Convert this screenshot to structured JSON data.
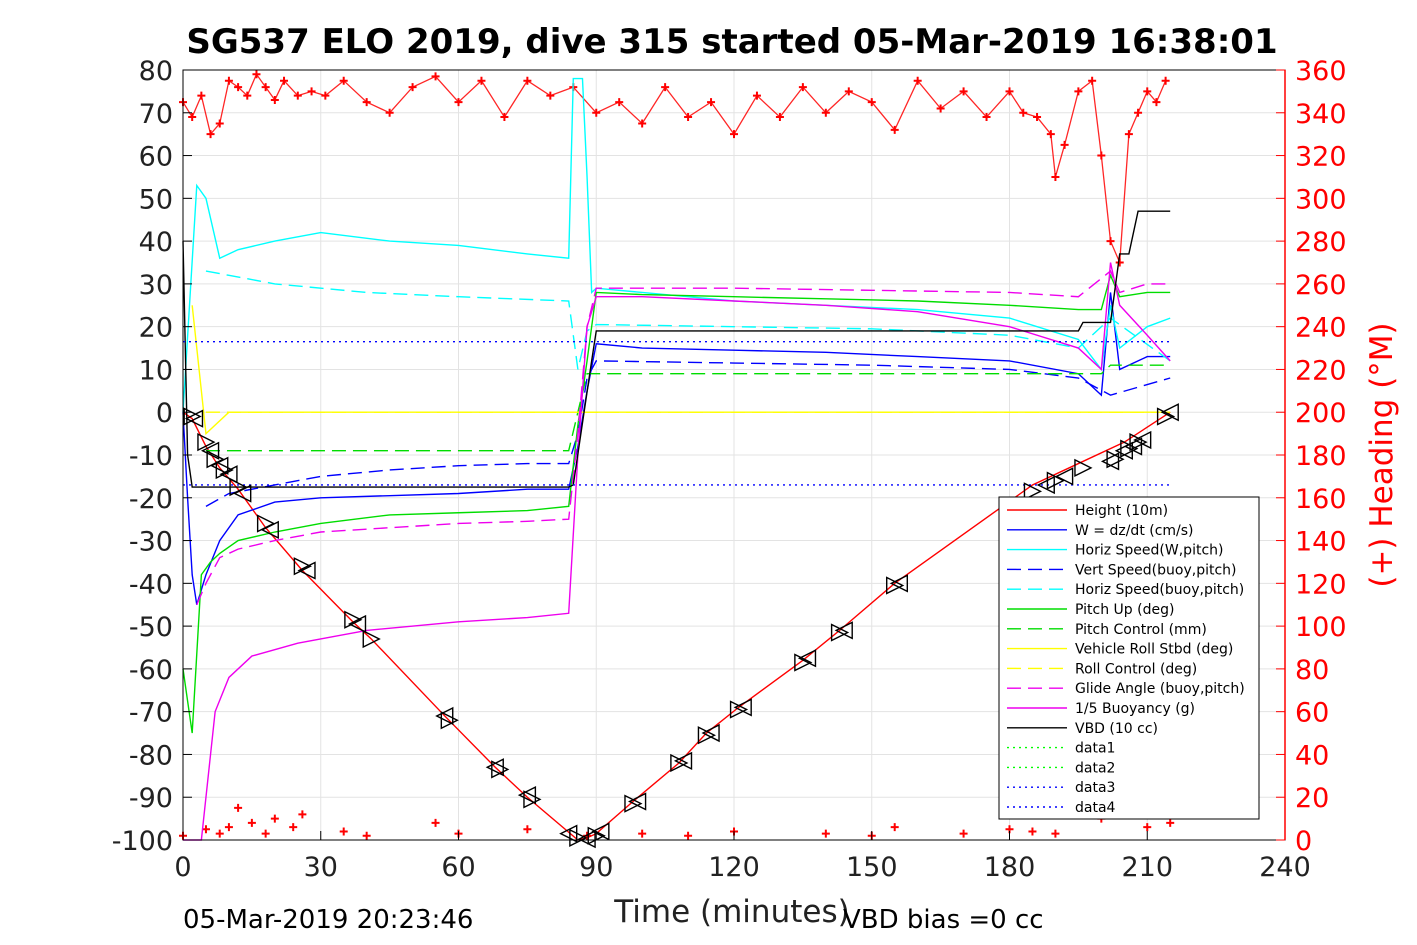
{
  "chart_data": {
    "type": "line",
    "title": "SG537 ELO 2019, dive 315 started 05-Mar-2019 16:38:01",
    "xlabel": "Time (minutes)",
    "ylabel": "",
    "y2label": "(+) Heading (°M)",
    "xlim": [
      0,
      240
    ],
    "ylim": [
      -100,
      80
    ],
    "y2lim": [
      0,
      360
    ],
    "xticks": [
      "0",
      "30",
      "60",
      "90",
      "120",
      "150",
      "180",
      "210",
      "240"
    ],
    "yticks": [
      "80",
      "70",
      "60",
      "50",
      "40",
      "30",
      "20",
      "10",
      "0",
      "-10",
      "-20",
      "-30",
      "-40",
      "-50",
      "-60",
      "-70",
      "-80",
      "-90",
      "-100"
    ],
    "y2ticks": [
      "360",
      "340",
      "320",
      "300",
      "280",
      "260",
      "240",
      "220",
      "200",
      "180",
      "160",
      "140",
      "120",
      "100",
      "80",
      "60",
      "40",
      "20",
      "0"
    ],
    "grid": true,
    "legend_position": "bottom-right",
    "series": [
      {
        "name": "Height (10m)",
        "color": "#ff0000",
        "style": "solid",
        "x": [
          0,
          2,
          5,
          8,
          12,
          18,
          26,
          37,
          41,
          57,
          68,
          75,
          86,
          88,
          90,
          98,
          108,
          114,
          121,
          135,
          143,
          155,
          185,
          195,
          205,
          215
        ],
        "y": [
          0,
          -1.5,
          -8,
          -13,
          -18,
          -27,
          -37,
          -49,
          -53,
          -71,
          -83,
          -90,
          -100,
          -99.5,
          -98.5,
          -91,
          -82,
          -75,
          -69,
          -58,
          -51,
          -40,
          -17,
          -12,
          -7,
          0
        ]
      },
      {
        "name": "W = dz/dt (cm/s)",
        "color": "#0000ff",
        "style": "solid",
        "x": [
          0,
          1,
          2,
          3,
          5,
          8,
          12,
          20,
          30,
          45,
          60,
          75,
          84,
          86,
          88,
          90,
          100,
          120,
          140,
          160,
          180,
          195,
          200,
          202,
          204,
          210,
          215
        ],
        "y": [
          0,
          -20,
          -38,
          -45,
          -38,
          -30,
          -24,
          -21,
          -20,
          -19.5,
          -19,
          -18,
          -18,
          -8,
          5,
          16,
          15,
          14.5,
          14,
          13,
          12,
          9,
          4,
          28,
          10,
          13,
          13
        ]
      },
      {
        "name": "Horiz Speed(W,pitch)",
        "color": "#00ffff",
        "style": "solid",
        "x": [
          0,
          3,
          5,
          8,
          12,
          20,
          30,
          45,
          60,
          75,
          84,
          85,
          87,
          88,
          89,
          90,
          100,
          120,
          140,
          160,
          180,
          195,
          200,
          202,
          204,
          210,
          215
        ],
        "y": [
          0,
          53,
          50,
          36,
          38,
          40,
          42,
          40,
          39,
          37,
          36,
          78,
          78,
          55,
          28,
          29,
          28,
          26,
          25,
          24,
          22,
          17,
          10,
          25,
          15,
          20,
          22
        ]
      },
      {
        "name": "Vert Speed(buoy,pitch)",
        "color": "#0000ff",
        "style": "dashed",
        "x": [
          5,
          10,
          20,
          30,
          45,
          60,
          75,
          84,
          86,
          88,
          90,
          120,
          150,
          180,
          195,
          202,
          215
        ],
        "y": [
          -22,
          -19,
          -17,
          -15,
          -13.5,
          -12.5,
          -12,
          -12,
          -5,
          8,
          12,
          11.5,
          11,
          10,
          8,
          4,
          8
        ]
      },
      {
        "name": "Horiz Speed(buoy,pitch)",
        "color": "#00ffff",
        "style": "dashed",
        "x": [
          5,
          10,
          20,
          40,
          60,
          84,
          86,
          88,
          90,
          120,
          150,
          180,
          195,
          202,
          215
        ],
        "y": [
          33,
          32,
          30,
          28,
          27,
          26,
          10,
          19,
          20.5,
          20,
          19.5,
          18,
          15,
          22,
          12
        ]
      },
      {
        "name": "Pitch Up (deg)",
        "color": "#00dd00",
        "style": "solid",
        "x": [
          0,
          2,
          4,
          6,
          8,
          12,
          20,
          30,
          45,
          60,
          75,
          84,
          86,
          88,
          90,
          100,
          120,
          140,
          160,
          180,
          195,
          200,
          202,
          204,
          210,
          215
        ],
        "y": [
          -60,
          -75,
          -38,
          -35,
          -33,
          -30,
          -28,
          -26,
          -24,
          -23.5,
          -23,
          -22,
          -3,
          12,
          28,
          27.5,
          27,
          26.5,
          26,
          25,
          24,
          24,
          32,
          27,
          28,
          28
        ]
      },
      {
        "name": "Pitch Control (mm)",
        "color": "#00dd00",
        "style": "dashed",
        "x": [
          5,
          84,
          86,
          88,
          200,
          202,
          215
        ],
        "y": [
          -9,
          -9,
          0,
          9,
          9,
          11,
          11
        ]
      },
      {
        "name": "Vehicle Roll Stbd (deg)",
        "color": "#ffff00",
        "style": "solid",
        "x": [
          2,
          5,
          10,
          20,
          40,
          60,
          80,
          84,
          86,
          88,
          100,
          120,
          140,
          160,
          180,
          200,
          205,
          215
        ],
        "y": [
          25,
          -5,
          0,
          0,
          0,
          0,
          0,
          0,
          0,
          0,
          0,
          0,
          0,
          0,
          0,
          0,
          0,
          0
        ]
      },
      {
        "name": "Roll Control (deg)",
        "color": "#ffff00",
        "style": "dashed",
        "x": [
          5,
          40,
          84,
          90,
          120,
          150,
          180,
          190,
          215
        ],
        "y": [
          0,
          0,
          0,
          0,
          0,
          0,
          0,
          0,
          0
        ]
      },
      {
        "name": "Glide Angle (buoy,pitch)",
        "color": "#ee00ee",
        "style": "dashed",
        "x": [
          3,
          5,
          8,
          12,
          20,
          30,
          45,
          60,
          75,
          84,
          86,
          88,
          90,
          120,
          150,
          180,
          195,
          202,
          204,
          210,
          215
        ],
        "y": [
          -45,
          -40,
          -34,
          -32,
          -30,
          -28,
          -27,
          -26,
          -25.5,
          -25,
          -5,
          20,
          29,
          29,
          28.5,
          28,
          27,
          33,
          28,
          30,
          30
        ]
      },
      {
        "name": "1/5 Buoyancy (g)",
        "color": "#ee00ee",
        "style": "solid",
        "x": [
          0,
          2,
          4,
          5,
          7,
          10,
          15,
          25,
          40,
          60,
          75,
          84,
          86,
          88,
          90,
          100,
          120,
          140,
          160,
          180,
          195,
          200,
          202,
          204,
          210,
          215
        ],
        "y": [
          -100,
          -100,
          -100,
          -90,
          -70,
          -62,
          -57,
          -54,
          -51,
          -49,
          -48,
          -47,
          -10,
          20,
          27,
          27,
          26,
          25,
          23.5,
          20,
          15,
          10,
          35,
          25,
          18,
          12
        ]
      },
      {
        "name": "VBD (10 cc)",
        "color": "#000000",
        "style": "solid",
        "x": [
          0,
          1,
          2,
          84,
          85,
          89,
          90,
          195,
          196,
          202,
          204,
          206,
          208,
          215
        ],
        "y": [
          40,
          -10,
          -17.5,
          -17.5,
          -17,
          12,
          19,
          19,
          21,
          21,
          37,
          37,
          47,
          47
        ]
      },
      {
        "name": "data1",
        "color": "#00ff00",
        "style": "dotted",
        "x": [],
        "y": []
      },
      {
        "name": "data2",
        "color": "#00ff00",
        "style": "dotted",
        "x": [],
        "y": []
      },
      {
        "name": "data3",
        "color": "#0000ff",
        "style": "dotted",
        "x": [
          0,
          215
        ],
        "y": [
          16.5,
          16.5
        ]
      },
      {
        "name": "data4",
        "color": "#0000ff",
        "style": "dotted",
        "x": [
          0,
          215
        ],
        "y": [
          -17,
          -17
        ]
      }
    ],
    "heading_series": {
      "axis": "right",
      "color": "#ff0000",
      "marker": "+",
      "x": [
        0,
        2,
        4,
        6,
        8,
        10,
        12,
        14,
        16,
        18,
        20,
        22,
        25,
        28,
        31,
        35,
        40,
        45,
        50,
        55,
        60,
        65,
        70,
        75,
        80,
        85,
        90,
        95,
        100,
        105,
        110,
        115,
        120,
        125,
        130,
        135,
        140,
        145,
        150,
        155,
        160,
        165,
        170,
        175,
        180,
        183,
        186,
        189,
        190,
        192,
        195,
        198,
        200,
        202,
        204,
        206,
        208,
        210,
        212,
        214
      ],
      "y": [
        345,
        338,
        348,
        330,
        335,
        355,
        352,
        348,
        358,
        352,
        346,
        355,
        348,
        350,
        348,
        355,
        345,
        340,
        352,
        357,
        345,
        355,
        338,
        355,
        348,
        352,
        340,
        345,
        335,
        352,
        338,
        345,
        330,
        348,
        338,
        352,
        340,
        350,
        345,
        332,
        355,
        342,
        350,
        338,
        350,
        340,
        338,
        330,
        310,
        325,
        350,
        355,
        320,
        280,
        270,
        330,
        340,
        350,
        345,
        355
      ]
    },
    "heading_bottom_points": {
      "x": [
        0,
        5,
        8,
        10,
        12,
        15,
        18,
        20,
        24,
        26,
        35,
        40,
        55,
        60,
        75,
        88,
        100,
        110,
        120,
        140,
        150,
        155,
        170,
        180,
        185,
        190,
        200,
        210,
        215
      ],
      "y": [
        2,
        5,
        3,
        6,
        15,
        8,
        3,
        10,
        6,
        12,
        4,
        2,
        8,
        3,
        5,
        2,
        3,
        2,
        4,
        3,
        2,
        6,
        3,
        5,
        4,
        3,
        10,
        6,
        8
      ]
    },
    "triangle_markers": {
      "color": "#000000",
      "x": [
        2,
        2.5,
        5,
        6,
        7,
        8,
        9,
        10,
        12,
        13,
        18,
        19,
        26,
        27,
        37,
        38,
        41,
        57,
        58,
        68,
        69,
        75,
        76,
        84,
        86,
        88,
        90,
        91,
        98,
        99,
        108,
        109,
        114,
        115,
        121,
        122,
        135,
        136,
        143,
        144,
        155,
        156,
        185,
        188,
        190,
        192,
        196,
        202,
        203,
        205,
        206,
        207,
        208,
        209,
        214,
        215
      ],
      "y": [
        -1,
        -1.5,
        -7,
        -9,
        -11,
        -12.5,
        -13.5,
        -14.5,
        -17.5,
        -19,
        -26,
        -27.5,
        -36,
        -37,
        -48.5,
        -49.5,
        -53,
        -71,
        -72,
        -83,
        -83.5,
        -89.5,
        -90.5,
        -98.5,
        -99.5,
        -99.8,
        -99,
        -98,
        -91.5,
        -91,
        -82,
        -81.5,
        -75.5,
        -75,
        -69.5,
        -69,
        -58.5,
        -57.5,
        -51.5,
        -51,
        -40.5,
        -40,
        -18.5,
        -17,
        -16,
        -15,
        -13,
        -11.5,
        -11,
        -9,
        -8.5,
        -8,
        -7,
        -6.5,
        -1,
        0
      ]
    }
  },
  "footer": {
    "timestamp": "05-Mar-2019 20:23:46",
    "vbd_bias": "VBD bias =0 cc"
  }
}
